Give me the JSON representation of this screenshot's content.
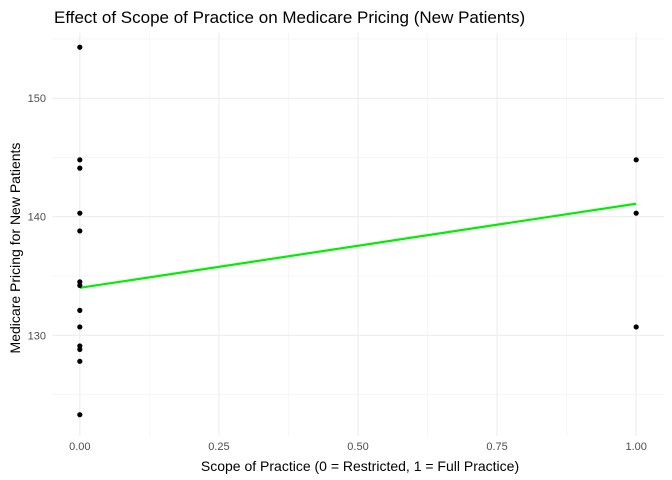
{
  "chart_data": {
    "type": "scatter",
    "title": "Effect of Scope of Practice on Medicare Pricing (New Patients)",
    "xlabel": "Scope of Practice (0 = Restricted, 1 = Full Practice)",
    "ylabel": "Medicare Pricing for New Patients",
    "xlim": [
      -0.05,
      1.05
    ],
    "ylim": [
      121.5,
      155.5
    ],
    "x_ticks": [
      0,
      0.25,
      0.5,
      0.75,
      1
    ],
    "x_tick_labels": [
      "0.00",
      "0.25",
      "0.50",
      "0.75",
      "1.00"
    ],
    "y_ticks": [
      130,
      140,
      150
    ],
    "y_tick_labels": [
      "130",
      "140",
      "150"
    ],
    "grid": true,
    "points": [
      {
        "x": 0,
        "y": 154.3
      },
      {
        "x": 0,
        "y": 144.8
      },
      {
        "x": 0,
        "y": 144.1
      },
      {
        "x": 0,
        "y": 140.3
      },
      {
        "x": 0,
        "y": 138.8
      },
      {
        "x": 0,
        "y": 134.5
      },
      {
        "x": 0,
        "y": 134.2
      },
      {
        "x": 0,
        "y": 132.1
      },
      {
        "x": 0,
        "y": 130.7
      },
      {
        "x": 0,
        "y": 129.1
      },
      {
        "x": 0,
        "y": 128.8
      },
      {
        "x": 0,
        "y": 127.8
      },
      {
        "x": 0,
        "y": 123.3
      },
      {
        "x": 1,
        "y": 144.8
      },
      {
        "x": 1,
        "y": 140.3
      },
      {
        "x": 1,
        "y": 130.7
      }
    ],
    "fit_line": {
      "x": [
        0,
        1
      ],
      "y": [
        134.0,
        141.1
      ]
    },
    "point_color": "#000000",
    "line_color": "#00ee00"
  }
}
